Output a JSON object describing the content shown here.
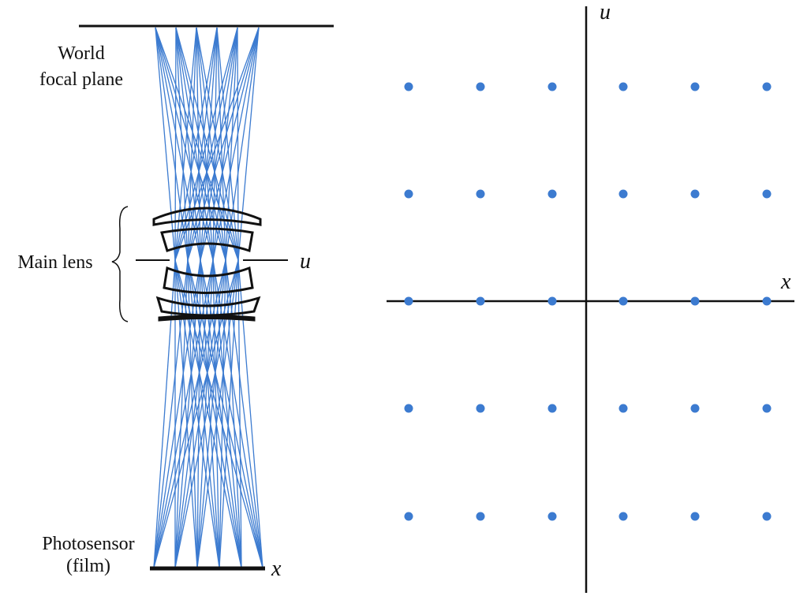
{
  "left": {
    "world_label": [
      "World",
      "focal plane"
    ],
    "lens_label": "Main lens",
    "lens_axis_label": "u",
    "sensor_label": [
      "Photosensor",
      "(film)"
    ],
    "sensor_axis_label": "x"
  },
  "right": {
    "vertical_axis_label": "u",
    "horizontal_axis_label": "x"
  }
}
